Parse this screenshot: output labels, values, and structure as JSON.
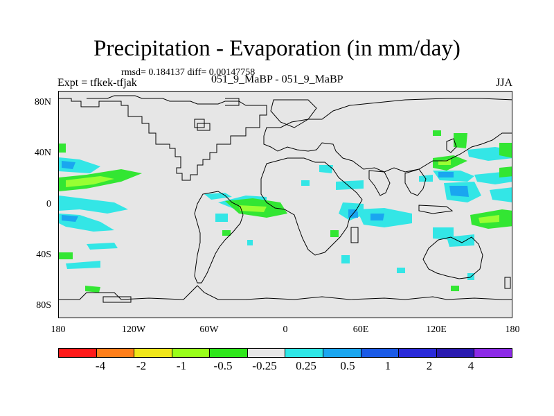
{
  "title": "Precipitation - Evaporation (in mm/day)",
  "stats": "rmsd= 0.184137 diff= 0.00147758",
  "experiment": "Expt = tfkek-tfjak",
  "subtitle": "051_9_MaBP - 051_9_MaBP",
  "season": "JJA",
  "lat_labels": [
    "80N",
    "40N",
    "0",
    "40S",
    "80S"
  ],
  "lon_labels": [
    "180",
    "120W",
    "60W",
    "0",
    "60E",
    "120E",
    "180"
  ],
  "colorbar": {
    "colors": [
      "#ff1a1a",
      "#ff7f1a",
      "#f0e61a",
      "#99ff1a",
      "#2ee61a",
      "#e6e6e6",
      "#2ee6e6",
      "#1aa6f0",
      "#1a5ae6",
      "#2a2ad9",
      "#2a1ab0",
      "#8c2ae6"
    ],
    "labels": [
      "-4",
      "-2",
      "-1",
      "-0.5",
      "-0.25",
      "0.25",
      "0.5",
      "1",
      "2",
      "4"
    ]
  },
  "colors": {
    "background": "#e6e6e6",
    "coast": "#000000",
    "light_green": "#99ff33",
    "green": "#33e633",
    "cyan": "#33e6e6",
    "light_blue": "#1aa6f0"
  }
}
